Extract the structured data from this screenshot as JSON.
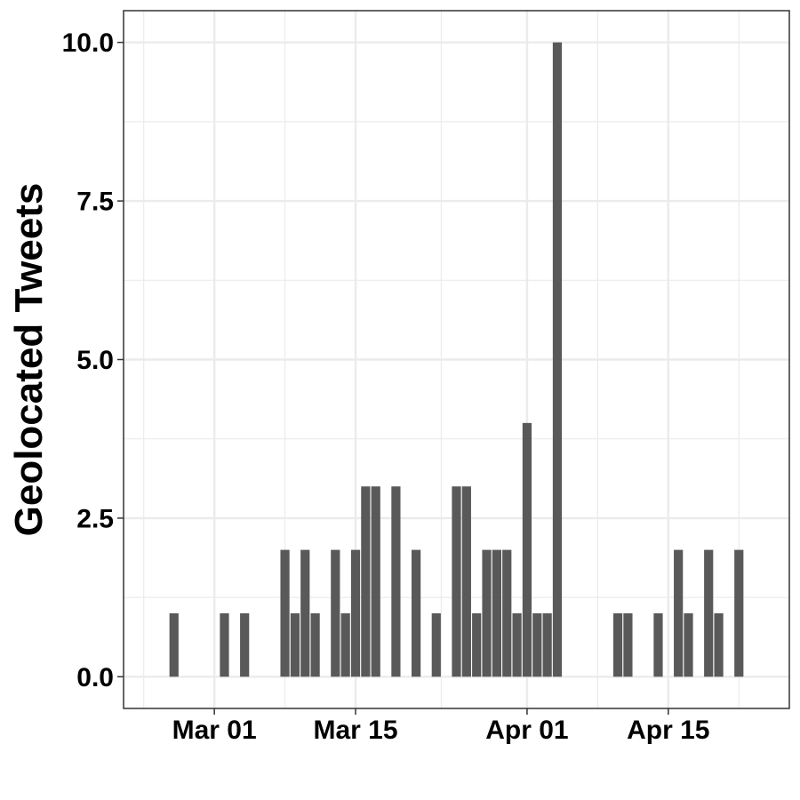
{
  "chart_data": {
    "type": "bar",
    "title": "",
    "xlabel": "",
    "ylabel": "Geolocated Tweets",
    "x_type": "date",
    "ylim": [
      -0.5,
      10.5
    ],
    "xlim": [
      "2020-02-21",
      "2020-04-27"
    ],
    "y_ticks": [
      0.0,
      2.5,
      5.0,
      7.5,
      10.0
    ],
    "y_tick_labels": [
      "0.0",
      "2.5",
      "5.0",
      "7.5",
      "10.0"
    ],
    "x_ticks": [
      "2020-03-01",
      "2020-03-15",
      "2020-04-01",
      "2020-04-15"
    ],
    "x_tick_labels": [
      "Mar 01",
      "Mar 15",
      "Apr 01",
      "Apr 15"
    ],
    "grid": true,
    "legend": "none",
    "colors": {
      "bar": "#595959",
      "grid": "#ebebeb",
      "panel_border": "#333333",
      "tick": "#333333"
    },
    "bars": [
      {
        "date": "2020-02-26",
        "value": 1
      },
      {
        "date": "2020-03-02",
        "value": 1
      },
      {
        "date": "2020-03-04",
        "value": 1
      },
      {
        "date": "2020-03-08",
        "value": 2
      },
      {
        "date": "2020-03-09",
        "value": 1
      },
      {
        "date": "2020-03-10",
        "value": 2
      },
      {
        "date": "2020-03-11",
        "value": 1
      },
      {
        "date": "2020-03-13",
        "value": 2
      },
      {
        "date": "2020-03-14",
        "value": 1
      },
      {
        "date": "2020-03-15",
        "value": 2
      },
      {
        "date": "2020-03-16",
        "value": 3
      },
      {
        "date": "2020-03-17",
        "value": 3
      },
      {
        "date": "2020-03-19",
        "value": 3
      },
      {
        "date": "2020-03-21",
        "value": 2
      },
      {
        "date": "2020-03-23",
        "value": 1
      },
      {
        "date": "2020-03-25",
        "value": 3
      },
      {
        "date": "2020-03-26",
        "value": 3
      },
      {
        "date": "2020-03-27",
        "value": 1
      },
      {
        "date": "2020-03-28",
        "value": 2
      },
      {
        "date": "2020-03-29",
        "value": 2
      },
      {
        "date": "2020-03-30",
        "value": 2
      },
      {
        "date": "2020-03-31",
        "value": 1
      },
      {
        "date": "2020-04-01",
        "value": 4
      },
      {
        "date": "2020-04-02",
        "value": 1
      },
      {
        "date": "2020-04-03",
        "value": 1
      },
      {
        "date": "2020-04-04",
        "value": 10
      },
      {
        "date": "2020-04-10",
        "value": 1
      },
      {
        "date": "2020-04-11",
        "value": 1
      },
      {
        "date": "2020-04-14",
        "value": 1
      },
      {
        "date": "2020-04-16",
        "value": 2
      },
      {
        "date": "2020-04-17",
        "value": 1
      },
      {
        "date": "2020-04-19",
        "value": 2
      },
      {
        "date": "2020-04-20",
        "value": 1
      },
      {
        "date": "2020-04-22",
        "value": 2
      }
    ]
  }
}
